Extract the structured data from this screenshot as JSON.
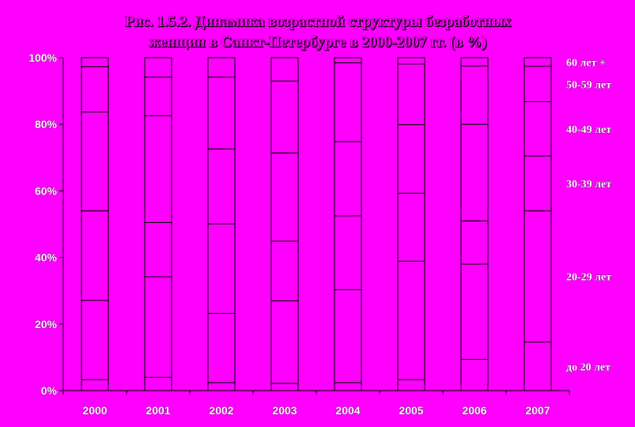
{
  "chart_data": {
    "type": "bar",
    "stacked": true,
    "percent_stacked": true,
    "title_line1": "Рис. 1.5.2. Динамика возрастной структуры безработных",
    "title_line2": "женщин в Санкт-Петербурге в 2000-2007 гг. (в %)",
    "categories": [
      "2000",
      "2001",
      "2002",
      "2003",
      "2004",
      "2005",
      "2006",
      "2007"
    ],
    "y_ticks": [
      "0%",
      "20%",
      "40%",
      "60%",
      "80%",
      "100%"
    ],
    "ylim": [
      0,
      100
    ],
    "legend_placement": "right",
    "series": [
      {
        "name": "до 20 лет",
        "values": [
          3.3,
          4.0,
          2.4,
          2.2,
          2.4,
          3.3,
          9.4,
          14.6
        ]
      },
      {
        "name": "20-29 лет",
        "values": [
          23.8,
          30.2,
          20.8,
          24.8,
          27.9,
          35.6,
          28.6,
          39.4
        ]
      },
      {
        "name": "30-39 лет",
        "values": [
          26.9,
          16.3,
          26.9,
          17.9,
          22.2,
          20.4,
          13.0,
          16.5
        ]
      },
      {
        "name": "40-49 лет",
        "values": [
          29.7,
          32.1,
          22.5,
          26.5,
          22.3,
          20.6,
          29.0,
          16.3
        ]
      },
      {
        "name": "50-59 лет",
        "values": [
          13.6,
          11.6,
          21.6,
          21.6,
          23.7,
          18.2,
          17.5,
          10.6
        ]
      },
      {
        "name": "60 лет +",
        "values": [
          2.7,
          5.8,
          5.8,
          7.0,
          1.5,
          1.9,
          2.5,
          2.6
        ]
      }
    ],
    "colors": {
      "background": "#ff00ff",
      "bar_fill": "#ff00ff",
      "bar_stroke": "#000000",
      "label_fill": "#ffffff"
    }
  }
}
